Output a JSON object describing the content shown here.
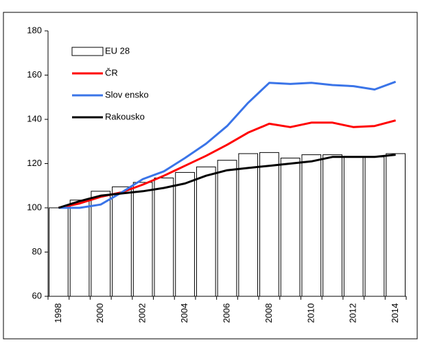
{
  "chart_data": {
    "type": "bar",
    "categories": [
      "1998",
      null,
      "2000",
      null,
      "2002",
      null,
      "2004",
      null,
      "2006",
      null,
      "2008",
      null,
      "2010",
      null,
      "2012",
      null,
      "2014"
    ],
    "series": [
      {
        "name": "EU 28",
        "kind": "bar",
        "color": "#ffffff",
        "values": [
          100,
          103.5,
          107.5,
          109.5,
          111.5,
          113.5,
          116,
          118.5,
          121.5,
          124.5,
          125,
          122.5,
          124,
          124,
          123,
          123,
          124.5
        ]
      },
      {
        "name": "ČR",
        "kind": "line",
        "color": "#ff0000",
        "values": [
          100,
          102,
          105,
          107,
          110.5,
          114.5,
          119,
          123.5,
          128.5,
          134,
          138,
          136.5,
          138.5,
          138.5,
          136.5,
          137,
          139.5
        ]
      },
      {
        "name": "Slov ensko",
        "kind": "line",
        "color": "#3a74e8",
        "values": [
          100,
          100,
          101.5,
          107,
          113,
          116.5,
          122.5,
          129,
          137,
          147.5,
          156.5,
          156,
          156.5,
          155.5,
          155,
          153.5,
          157
        ]
      },
      {
        "name": "Rakousko",
        "kind": "line",
        "color": "#000000",
        "values": [
          100,
          103,
          105.5,
          106.5,
          107.5,
          109,
          111,
          114.5,
          117,
          118,
          119,
          120,
          121,
          123,
          123,
          123,
          124
        ]
      }
    ],
    "ylim": [
      60,
      180
    ],
    "yticks": [
      60,
      80,
      100,
      120,
      140,
      160,
      180
    ],
    "grid": false,
    "legend": "upper left"
  }
}
